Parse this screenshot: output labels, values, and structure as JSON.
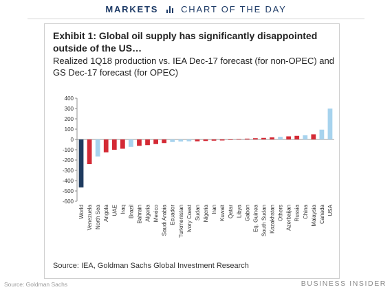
{
  "header": {
    "section": "MARKETS",
    "label": "CHART OF THE DAY"
  },
  "exhibit": {
    "title": "Exhibit 1: Global oil supply has significantly disappointed outside of the US…",
    "subtitle": "Realized 1Q18 production vs. IEA Dec-17 forecast (for non-OPEC) and GS Dec-17  forecast (for OPEC)",
    "source": "Source: IEA, Goldman Sachs Global Investment Research"
  },
  "footer": {
    "credit": "Source: Goldman Sachs",
    "brand": "BUSINESS INSIDER"
  },
  "colors": {
    "dark": "#1f3b5f",
    "red": "#d42a35",
    "light": "#a7d3ee"
  },
  "chart_data": {
    "type": "bar",
    "title": "",
    "xlabel": "",
    "ylabel": "",
    "ylim": [
      -600,
      400
    ],
    "yticks": [
      400,
      300,
      200,
      100,
      0,
      -100,
      -200,
      -300,
      -400,
      -500,
      -600
    ],
    "categories": [
      "World",
      "Venezuela",
      "North Sea",
      "Angola",
      "UAE",
      "Iraq",
      "Brazil",
      "Bahrain",
      "Algeria",
      "Mexico",
      "Saudi Arabia",
      "Ecuador",
      "Turkmenistan",
      "Ivory Coast",
      "Sudan",
      "Nigeria",
      "Iran",
      "Kuwait",
      "Qatar",
      "Libya",
      "Gabon",
      "Eq. Guinea",
      "South Sudan",
      "Kazakhstan",
      "Others",
      "Azerbaijan",
      "Russia",
      "China",
      "Malaysia",
      "Canada",
      "USA"
    ],
    "values": [
      -465,
      -240,
      -165,
      -125,
      -100,
      -90,
      -72,
      -62,
      -55,
      -45,
      -35,
      -25,
      -20,
      -18,
      -18,
      -15,
      -12,
      -10,
      -5,
      5,
      8,
      12,
      15,
      20,
      25,
      30,
      35,
      40,
      50,
      95,
      300
    ],
    "bar_colors": [
      "dark",
      "red",
      "light",
      "red",
      "red",
      "red",
      "light",
      "red",
      "red",
      "red",
      "red",
      "light",
      "light",
      "light",
      "red",
      "red",
      "red",
      "red",
      "red",
      "red",
      "red",
      "red",
      "red",
      "red",
      "light",
      "red",
      "red",
      "light",
      "red",
      "light",
      "light"
    ]
  }
}
